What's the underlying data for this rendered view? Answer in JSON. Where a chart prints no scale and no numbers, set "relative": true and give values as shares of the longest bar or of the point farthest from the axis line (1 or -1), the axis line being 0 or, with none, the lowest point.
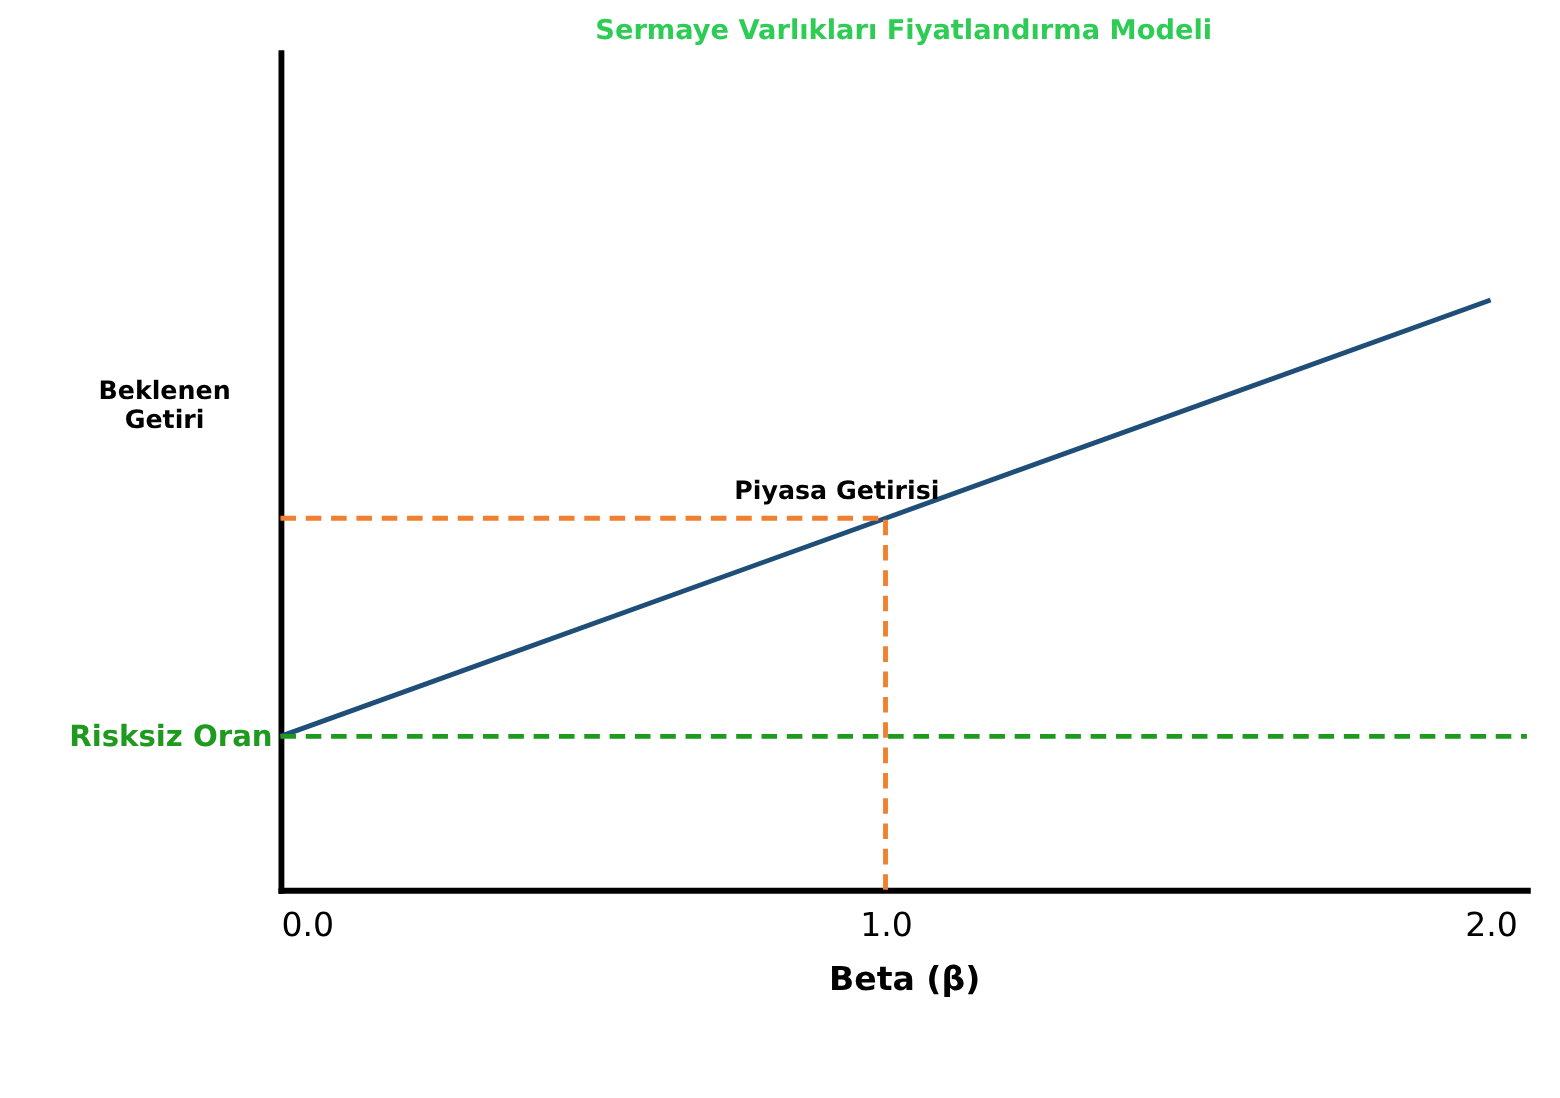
{
  "chart_data": {
    "type": "line",
    "title": "Sermaye Varlıkları Fiyatlandırma Modeli",
    "xlabel": "Beta (β)",
    "ylabel": "Beklenen Getiri",
    "relative": true,
    "x": [
      0,
      1,
      2
    ],
    "series": [
      {
        "color": "#1f4e79",
        "values": [
          0.26,
          0.63,
          1.0
        ]
      }
    ],
    "xlim": [
      0,
      2.06
    ],
    "xticks": [
      {
        "value": 0,
        "label": "0.0"
      },
      {
        "value": 1,
        "label": "1.0"
      },
      {
        "value": 2,
        "label": "2.0"
      }
    ],
    "ref_lines": [
      {
        "axis": "y",
        "value": 0.26,
        "label": "Risksiz Oran",
        "color": "#1e9a1e",
        "line_style": "dashed"
      },
      {
        "axis": "y",
        "value": 0.63,
        "color": "#f08030",
        "line_style": "dashed"
      },
      {
        "axis": "x",
        "value": 1,
        "color": "#f08030",
        "line_style": "dashed"
      }
    ],
    "annotations": [
      {
        "text": "Piyasa Getirisi",
        "x": 1,
        "y": 0.63
      }
    ],
    "grid": false,
    "marker": "none",
    "line_style": "solid"
  }
}
